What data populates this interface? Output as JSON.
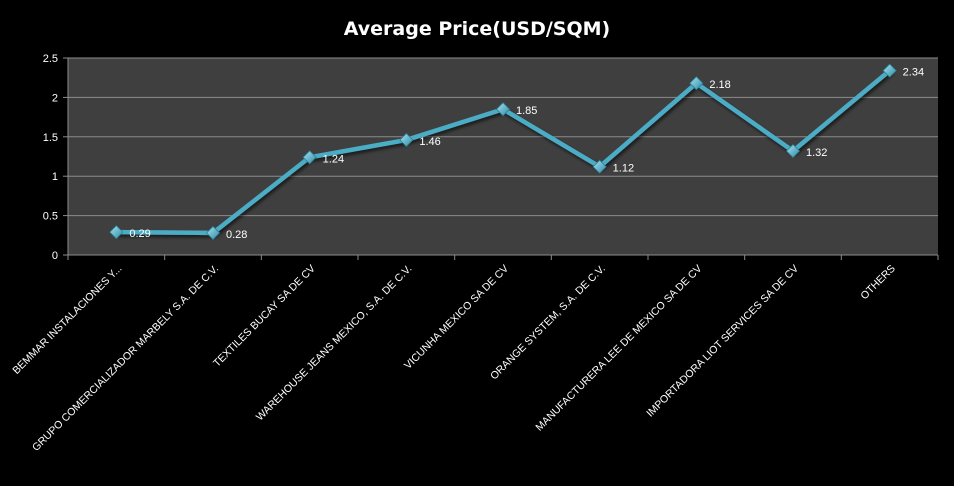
{
  "chart_data": {
    "type": "line",
    "title": "Average Price(USD/SQM)",
    "categories": [
      "BEMMAR INSTALACIONES Y...",
      "GRUPO COMERCIALIZADOR MARBELY S.A. DE C.V.",
      "TEXTILES BUCAY SA DE CV",
      "WAREHOUSE JEANS MEXICO, S.A. DE C.V.",
      "VICUNHA MEXICO SA DE CV",
      "ORANGE SYSTEM, S.A. DE C.V.",
      "MANUFACTURERA LEE DE MEXICO SA DE CV",
      "IMPORTADORA LIOT SERVICES SA DE CV",
      "OTHERS"
    ],
    "values": [
      0.29,
      0.28,
      1.24,
      1.46,
      1.85,
      1.12,
      2.18,
      1.32,
      2.34
    ],
    "data_labels": [
      "0.29",
      "0.28",
      "1.24",
      "1.46",
      "1.85",
      "1.12",
      "2.18",
      "1.32",
      "2.34"
    ],
    "ylim": [
      0,
      2.5
    ],
    "yticks": [
      0,
      0.5,
      1,
      1.5,
      2,
      2.5
    ],
    "ytick_labels": [
      "0",
      "0.5",
      "1",
      "1.5",
      "2",
      "2.5"
    ],
    "xlabel": "",
    "ylabel": "",
    "grid": true,
    "legend": "none",
    "colors": {
      "background": "#000000",
      "plot_area": "#3f3f3f",
      "gridline": "#8c8c8c",
      "line": "#4bacc6",
      "marker": "#4bacc6",
      "text": "#ffffff"
    }
  }
}
